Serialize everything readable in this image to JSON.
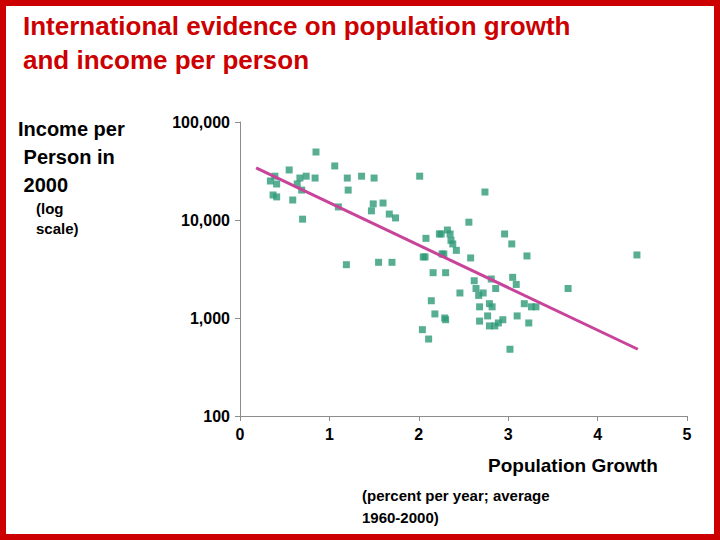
{
  "chart_data": {
    "type": "scatter",
    "title": "International evidence on population growth and income per person",
    "xlabel": "Population Growth",
    "ylabel": "Income per Person in 2000",
    "annotations": [
      "(log scale)",
      "(percent per year; average 1960-2000)"
    ],
    "log": "y",
    "grid": false,
    "xlim": [
      0,
      5
    ],
    "xticks": [
      0,
      1,
      2,
      3,
      4,
      5
    ],
    "ylim": [
      100,
      100000
    ],
    "yticks": [
      100,
      {
        "value": 1000,
        "label": "1,000"
      },
      {
        "value": 10000,
        "label": "10,000"
      },
      {
        "value": 100000,
        "label": "100,000"
      }
    ],
    "series": [
      {
        "type": "scatter",
        "color": "#2e9a78",
        "marker": "square",
        "x": [
          0.34,
          0.39,
          0.41,
          0.37,
          0.41,
          0.55,
          0.64,
          0.59,
          0.67,
          0.74,
          0.69,
          0.84,
          0.85,
          0.7,
          1.06,
          1.1,
          1.2,
          1.21,
          1.36,
          1.5,
          1.19,
          1.47,
          1.49,
          1.6,
          1.55,
          1.7,
          1.67,
          1.74,
          2.01,
          2.05,
          2.07,
          2.08,
          2.23,
          2.25,
          2.32,
          2.35,
          2.36,
          2.26,
          2.28,
          2.38,
          2.42,
          2.16,
          2.3,
          2.14,
          2.18,
          2.29,
          2.3,
          2.04,
          2.11,
          2.46,
          2.56,
          2.58,
          2.62,
          2.64,
          2.67,
          2.72,
          2.74,
          2.68,
          2.79,
          2.68,
          2.77,
          2.82,
          2.79,
          2.85,
          2.89,
          2.81,
          2.86,
          2.96,
          3.04,
          2.94,
          3.02,
          3.05,
          3.09,
          3.1,
          3.18,
          3.23,
          3.26,
          3.31,
          3.21,
          3.67,
          4.44
        ],
        "values": [
          25000,
          28000,
          23300,
          18000,
          17200,
          32400,
          23300,
          16000,
          26800,
          28000,
          20200,
          26800,
          49400,
          10200,
          35600,
          13600,
          26800,
          20200,
          28000,
          26800,
          3500,
          12400,
          14600,
          14900,
          3700,
          3700,
          11500,
          10500,
          28000,
          4200,
          4200,
          6500,
          7200,
          7200,
          7900,
          7200,
          6200,
          4500,
          4500,
          5700,
          4900,
          2900,
          2900,
          1500,
          1100,
          1000,
          960,
          760,
          610,
          1800,
          9500,
          4100,
          2400,
          2000,
          1700,
          1800,
          19300,
          1300,
          1400,
          930,
          1050,
          1300,
          830,
          830,
          890,
          2500,
          2000,
          7200,
          5700,
          960,
          480,
          2600,
          2200,
          1050,
          1400,
          890,
          1300,
          1300,
          4300,
          2000,
          4400
        ]
      },
      {
        "type": "line",
        "color": "#c8449a",
        "x": [
          0.18,
          4.45
        ],
        "values": [
          34000,
          480
        ]
      }
    ]
  }
}
